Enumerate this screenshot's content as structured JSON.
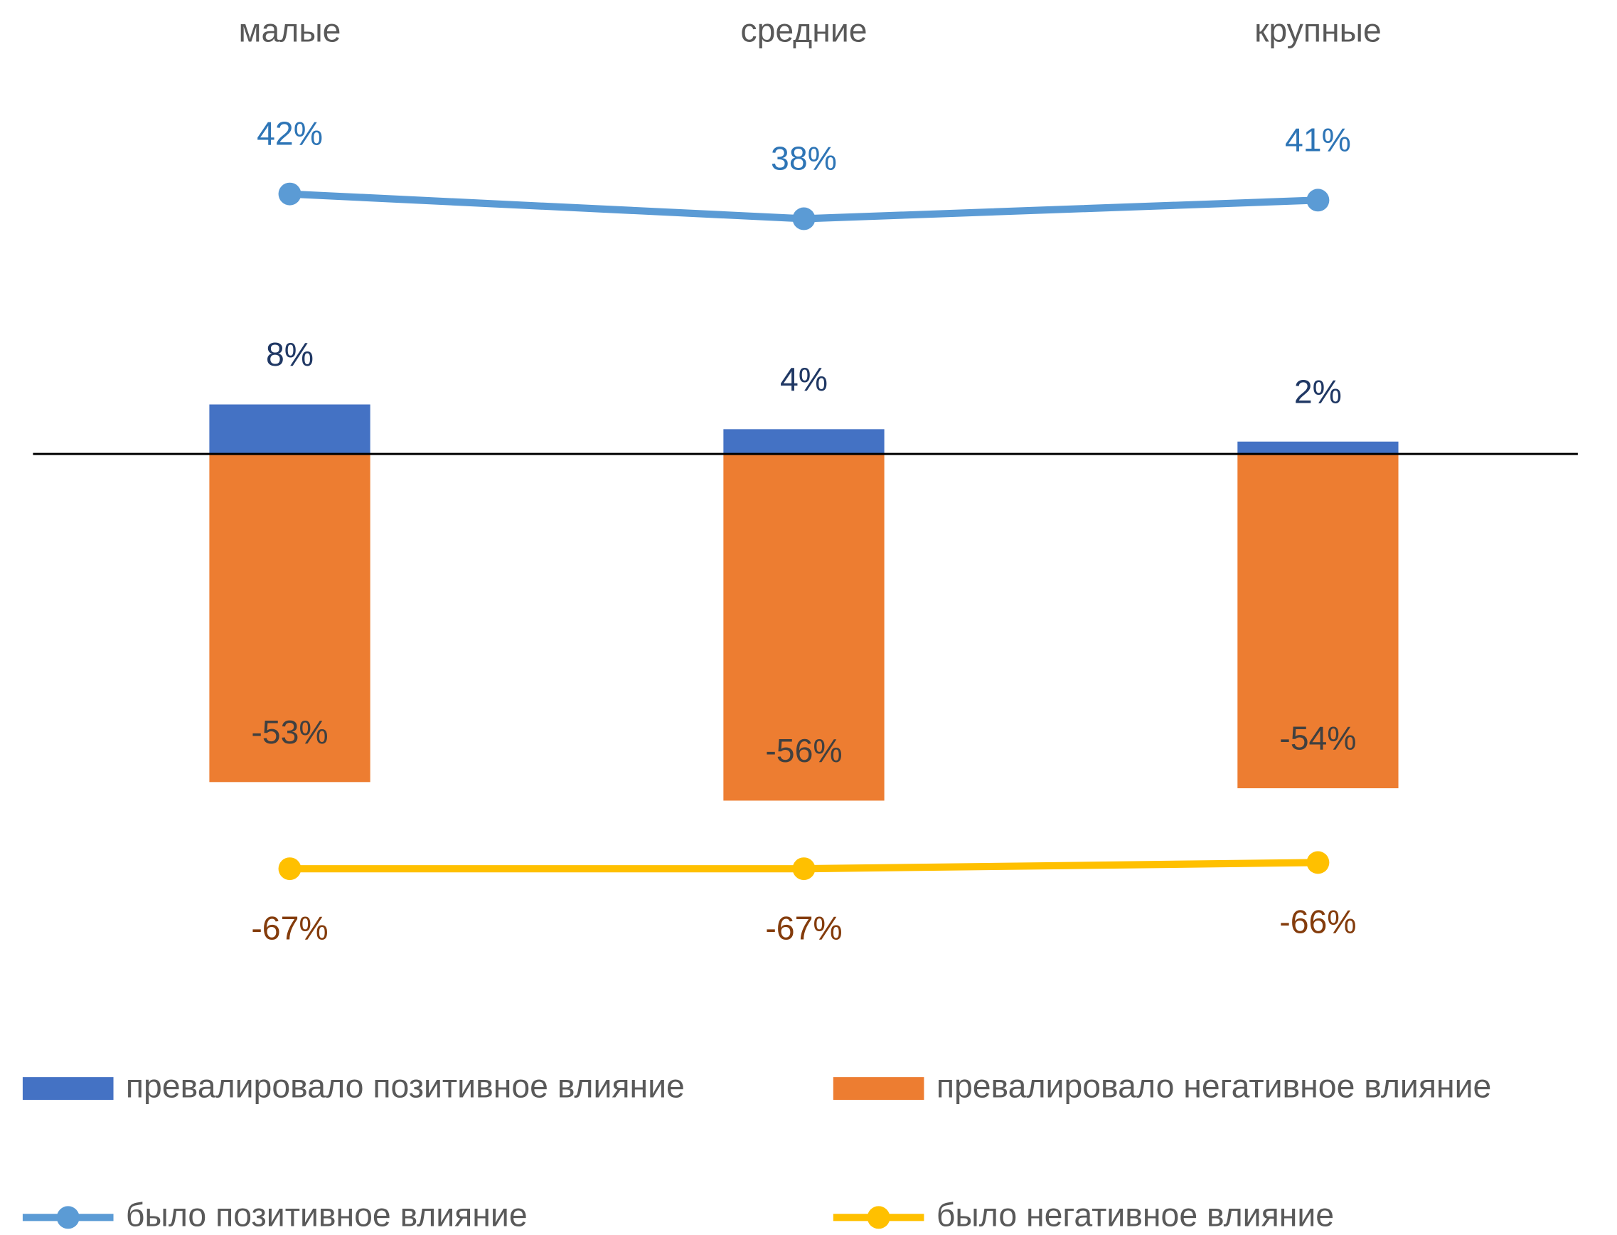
{
  "chart_data": {
    "type": "bar",
    "categories": [
      "малые",
      "средние",
      "крупные"
    ],
    "ylim": [
      -80,
      60
    ],
    "series": [
      {
        "name": "превалировало позитивное влияние",
        "type": "bar",
        "color": "#4472c4",
        "label_color": "#203864",
        "values": [
          8,
          4,
          2
        ],
        "value_labels": [
          "8%",
          "4%",
          "2%"
        ]
      },
      {
        "name": "превалировало негативное влияние",
        "type": "bar",
        "color": "#ed7d31",
        "label_color": "#404040",
        "values": [
          -53,
          -56,
          -54
        ],
        "value_labels": [
          "-53%",
          "-56%",
          "-54%"
        ]
      },
      {
        "name": "было позитивное влияние",
        "type": "line",
        "color": "#5b9bd5",
        "label_color": "#2e75b6",
        "values": [
          42,
          38,
          41
        ],
        "value_labels": [
          "42%",
          "38%",
          "41%"
        ]
      },
      {
        "name": "было негативное влияние",
        "type": "line",
        "color": "#ffc000",
        "label_color": "#843c0c",
        "values": [
          -67,
          -67,
          -66
        ],
        "value_labels": [
          "-67%",
          "-67%",
          "-66%"
        ]
      }
    ]
  }
}
